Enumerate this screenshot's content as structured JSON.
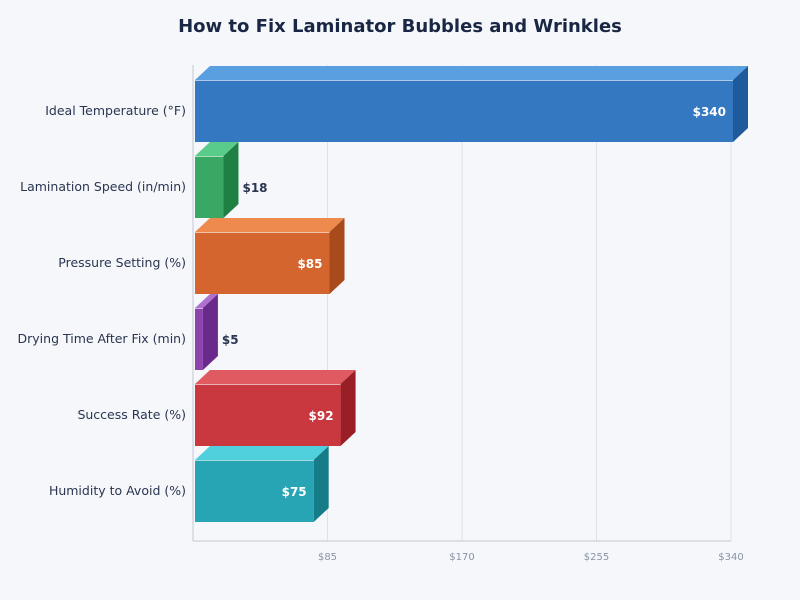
{
  "chart_data": {
    "type": "bar",
    "orientation": "horizontal",
    "style": "3d",
    "title": "How to Fix Laminator Bubbles and Wrinkles",
    "xlabel": "",
    "ylabel": "",
    "categories": [
      "Ideal Temperature (°F)",
      "Lamination Speed (in/min)",
      "Pressure Setting (%)",
      "Drying Time After Fix (min)",
      "Success Rate (%)",
      "Humidity to Avoid (%)"
    ],
    "values": [
      340,
      18,
      85,
      5,
      92,
      75
    ],
    "data_labels": [
      "$340",
      "$18",
      "$85",
      "$5",
      "$92",
      "$75"
    ],
    "colors": [
      "#3478c2",
      "#38a864",
      "#d4652e",
      "#8e44ad",
      "#c9373f",
      "#27a5b4"
    ],
    "top_colors": [
      "#5a9fe0",
      "#58cc88",
      "#ee8a4e",
      "#b070d0",
      "#e05a62",
      "#50d0dc"
    ],
    "side_colors": [
      "#1f5a9c",
      "#1f8044",
      "#a84a1c",
      "#6a2a8c",
      "#9a1e26",
      "#157c88"
    ],
    "xlim": [
      0,
      340
    ],
    "xticks": [
      85,
      170,
      255,
      340
    ],
    "xtick_labels": [
      "$85",
      "$170",
      "$255",
      "$340"
    ],
    "grid": true,
    "legend": "none"
  }
}
